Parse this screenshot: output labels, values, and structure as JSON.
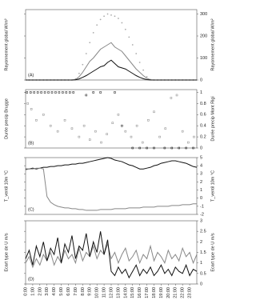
{
  "chart_data": [
    {
      "type": "line",
      "label": "(A)",
      "ylabel": "Rayonnement global W/m²",
      "y2label": "Rayonnement global W/m²",
      "xlim": [
        0,
        24
      ],
      "ylim": [
        0,
        320
      ],
      "yticks": [
        0,
        100,
        200,
        300
      ],
      "x": [
        0,
        0.5,
        1,
        1.5,
        2,
        2.5,
        3,
        3.5,
        4,
        4.5,
        5,
        5.5,
        6,
        6.5,
        7,
        7.5,
        8,
        8.5,
        9,
        9.5,
        10,
        10.5,
        11,
        11.5,
        12,
        12.5,
        13,
        13.5,
        14,
        14.5,
        15,
        15.5,
        16,
        16.5,
        17,
        17.5,
        18,
        18.5,
        19,
        19.5,
        20,
        20.5,
        21,
        21.5,
        22,
        22.5,
        23,
        23.5,
        24
      ],
      "series": [
        {
          "color": "#aaaaaa",
          "style": "dots",
          "values": [
            0,
            0,
            0,
            0,
            0,
            0,
            0,
            0,
            0,
            0,
            0,
            0,
            0,
            0,
            5,
            30,
            70,
            120,
            170,
            215,
            250,
            275,
            290,
            300,
            295,
            290,
            280,
            260,
            230,
            195,
            160,
            120,
            80,
            45,
            15,
            2,
            0,
            0,
            0,
            0,
            0,
            0,
            0,
            0,
            0,
            0,
            0,
            0,
            0
          ]
        },
        {
          "color": "#888888",
          "values": [
            0,
            0,
            0,
            0,
            0,
            0,
            0,
            0,
            0,
            0,
            0,
            0,
            0,
            0,
            2,
            15,
            35,
            60,
            85,
            100,
            120,
            140,
            150,
            160,
            170,
            150,
            140,
            130,
            110,
            90,
            70,
            50,
            35,
            20,
            8,
            1,
            0,
            0,
            0,
            0,
            0,
            0,
            0,
            0,
            0,
            0,
            0,
            0,
            0
          ]
        },
        {
          "color": "#111111",
          "values": [
            0,
            0,
            0,
            0,
            0,
            0,
            0,
            0,
            0,
            0,
            0,
            0,
            0,
            0,
            1,
            5,
            12,
            20,
            30,
            40,
            50,
            60,
            65,
            80,
            90,
            75,
            60,
            55,
            50,
            40,
            30,
            20,
            12,
            6,
            2,
            0,
            0,
            0,
            0,
            0,
            0,
            0,
            0,
            0,
            0,
            0,
            0,
            0,
            0
          ]
        }
      ]
    },
    {
      "type": "scatter",
      "label": "(B)",
      "ylabel": "Durée precip Brugge",
      "y2label": "Durée precip Mont Rigi",
      "xlim": [
        0,
        24
      ],
      "ylim": [
        0,
        1.05
      ],
      "yticks": [
        0,
        0.2,
        0.4,
        0.6,
        0.8,
        1
      ],
      "series": [
        {
          "color": "#111111",
          "x": [
            0.2,
            0.7,
            1.2,
            1.7,
            2.2,
            2.7,
            3.2,
            3.7,
            4.2,
            4.7,
            5.2,
            5.7,
            6.2,
            6.7,
            8.5,
            9.5,
            10.5,
            12.5,
            13.5,
            15,
            16,
            17,
            18,
            19.5,
            20.5,
            21.5,
            22.5,
            23.5
          ],
          "values": [
            1,
            1,
            1,
            1,
            1,
            1,
            1,
            1,
            1,
            1,
            1,
            1,
            1,
            1,
            0.95,
            1,
            1,
            1,
            0.4,
            0,
            0,
            0,
            0,
            0,
            0,
            0,
            0,
            0
          ]
        },
        {
          "color": "#888888",
          "x": [
            0.3,
            0.8,
            1.5,
            2.5,
            3.5,
            4.5,
            5.5,
            6.5,
            7.5,
            8.2,
            9,
            9.8,
            10.6,
            11.4,
            12.2,
            13,
            14,
            14.8,
            15.6,
            16.4,
            17.2,
            18,
            18.8,
            19.6,
            20.4,
            21.2,
            22,
            22.8,
            23.6
          ],
          "values": [
            0.8,
            0.7,
            0.5,
            0.6,
            0.4,
            0.3,
            0.5,
            0.35,
            0.2,
            0.4,
            0.15,
            0.3,
            0.1,
            0.25,
            0.45,
            0.6,
            0.3,
            0.2,
            0.4,
            0.1,
            0.5,
            0.65,
            0.2,
            0.35,
            0.9,
            0.95,
            0.3,
            0.1,
            0.2
          ]
        }
      ]
    },
    {
      "type": "line",
      "label": "(C)",
      "ylabel": "T_ventil 10m °C",
      "y2label": "T_ventil 10m °C",
      "xlim": [
        0,
        24
      ],
      "ylim": [
        -2,
        5
      ],
      "yticks": [
        -2,
        -1,
        0,
        1,
        2,
        3,
        4,
        5
      ],
      "x": [
        0,
        0.5,
        1,
        1.5,
        2,
        2.5,
        3,
        3.5,
        4,
        4.5,
        5,
        5.5,
        6,
        6.5,
        7,
        7.5,
        8,
        8.5,
        9,
        9.5,
        10,
        10.5,
        11,
        11.5,
        12,
        12.5,
        13,
        13.5,
        14,
        14.5,
        15,
        15.5,
        16,
        16.5,
        17,
        17.5,
        18,
        18.5,
        19,
        19.5,
        20,
        20.5,
        21,
        21.5,
        22,
        22.5,
        23,
        23.5,
        24
      ],
      "series": [
        {
          "color": "#111111",
          "values": [
            3.6,
            3.6,
            3.7,
            3.6,
            3.7,
            3.8,
            3.8,
            3.9,
            3.9,
            4.0,
            4.0,
            4.1,
            4.1,
            4.2,
            4.2,
            4.3,
            4.3,
            4.4,
            4.5,
            4.6,
            4.7,
            4.8,
            4.9,
            5.0,
            4.9,
            4.7,
            4.6,
            4.5,
            4.3,
            4.1,
            4.0,
            3.8,
            3.6,
            3.6,
            3.7,
            3.8,
            4.0,
            4.1,
            4.3,
            4.4,
            4.5,
            4.6,
            4.6,
            4.5,
            4.4,
            4.3,
            4.1,
            3.9,
            3.8
          ]
        },
        {
          "color": "#888888",
          "values": [
            3.5,
            3.6,
            3.6,
            3.7,
            3.7,
            3.6,
            0.2,
            -0.5,
            -0.8,
            -1.0,
            -1.1,
            -1.2,
            -1.2,
            -1.3,
            -1.3,
            -1.4,
            -1.4,
            -1.5,
            -1.5,
            -1.5,
            -1.5,
            -1.4,
            -1.4,
            -1.4,
            -1.4,
            -1.3,
            -1.3,
            -1.3,
            -1.3,
            -1.2,
            -1.2,
            -1.2,
            -1.2,
            -1.1,
            -1.1,
            -1.1,
            -1.1,
            -1.0,
            -1.0,
            -1.0,
            -1.0,
            -0.9,
            -0.9,
            -0.9,
            -0.8,
            -0.8,
            -0.8,
            -0.7,
            -0.7
          ]
        }
      ]
    },
    {
      "type": "line",
      "label": "(D)",
      "ylabel": "Ecart type de U m/s",
      "y2label": "Ecart type de U m/s",
      "xlim": [
        0,
        24
      ],
      "ylim": [
        0,
        3
      ],
      "yticks": [
        0,
        0.5,
        1,
        1.5,
        2,
        2.5,
        3
      ],
      "xticks": [
        {
          "value": 0,
          "label": "0:00"
        },
        {
          "value": 1,
          "label": "1:00"
        },
        {
          "value": 2,
          "label": "2:00"
        },
        {
          "value": 3,
          "label": "3:00"
        },
        {
          "value": 4,
          "label": "4:00"
        },
        {
          "value": 5,
          "label": "5:00"
        },
        {
          "value": 6,
          "label": "6:00"
        },
        {
          "value": 7,
          "label": "7:00"
        },
        {
          "value": 8,
          "label": "8:00"
        },
        {
          "value": 9,
          "label": "9:00"
        },
        {
          "value": 10,
          "label": "10:00"
        },
        {
          "value": 11,
          "label": "11:00"
        },
        {
          "value": 12,
          "label": "12:00"
        },
        {
          "value": 13,
          "label": "13:00"
        },
        {
          "value": 14,
          "label": "14:00"
        },
        {
          "value": 15,
          "label": "15:00"
        },
        {
          "value": 16,
          "label": "16:00"
        },
        {
          "value": 17,
          "label": "17:00"
        },
        {
          "value": 18,
          "label": "18:00"
        },
        {
          "value": 19,
          "label": "19:00"
        },
        {
          "value": 20,
          "label": "20:00"
        },
        {
          "value": 21,
          "label": "21:00"
        },
        {
          "value": 22,
          "label": "22:00"
        },
        {
          "value": 23,
          "label": "23:00"
        }
      ],
      "x": [
        0,
        0.5,
        1,
        1.5,
        2,
        2.5,
        3,
        3.5,
        4,
        4.5,
        5,
        5.5,
        6,
        6.5,
        7,
        7.5,
        8,
        8.5,
        9,
        9.5,
        10,
        10.5,
        11,
        11.5,
        12,
        12.5,
        13,
        13.5,
        14,
        14.5,
        15,
        15.5,
        16,
        16.5,
        17,
        17.5,
        18,
        18.5,
        19,
        19.5,
        20,
        20.5,
        21,
        21.5,
        22,
        22.5,
        23,
        23.5,
        24
      ],
      "series": [
        {
          "color": "#888888",
          "values": [
            1.0,
            1.3,
            0.8,
            1.2,
            0.9,
            1.4,
            1.1,
            1.5,
            0.9,
            1.3,
            1.0,
            1.6,
            1.2,
            1.4,
            1.0,
            1.7,
            1.1,
            1.5,
            1.3,
            1.8,
            1.2,
            1.6,
            1.4,
            1.9,
            1.2,
            1.5,
            1.0,
            1.4,
            1.7,
            1.1,
            1.3,
            1.6,
            1.0,
            1.4,
            1.2,
            1.8,
            1.1,
            1.5,
            1.3,
            1.0,
            1.6,
            1.2,
            1.4,
            1.1,
            1.7,
            1.3,
            1.5,
            1.0,
            1.4
          ]
        },
        {
          "color": "#111111",
          "values": [
            1.2,
            1.6,
            0.9,
            1.8,
            1.3,
            2.0,
            1.1,
            1.7,
            1.4,
            2.2,
            1.0,
            1.9,
            1.5,
            2.3,
            1.2,
            1.8,
            1.6,
            2.4,
            1.3,
            2.0,
            1.5,
            2.5,
            1.4,
            2.1,
            0.6,
            0.4,
            0.8,
            0.5,
            0.7,
            0.3,
            0.6,
            0.9,
            0.4,
            0.7,
            0.5,
            0.8,
            0.4,
            0.6,
            0.9,
            0.5,
            0.7,
            0.4,
            0.8,
            0.6,
            0.5,
            0.9,
            0.4,
            0.7,
            0.6
          ]
        }
      ]
    }
  ]
}
